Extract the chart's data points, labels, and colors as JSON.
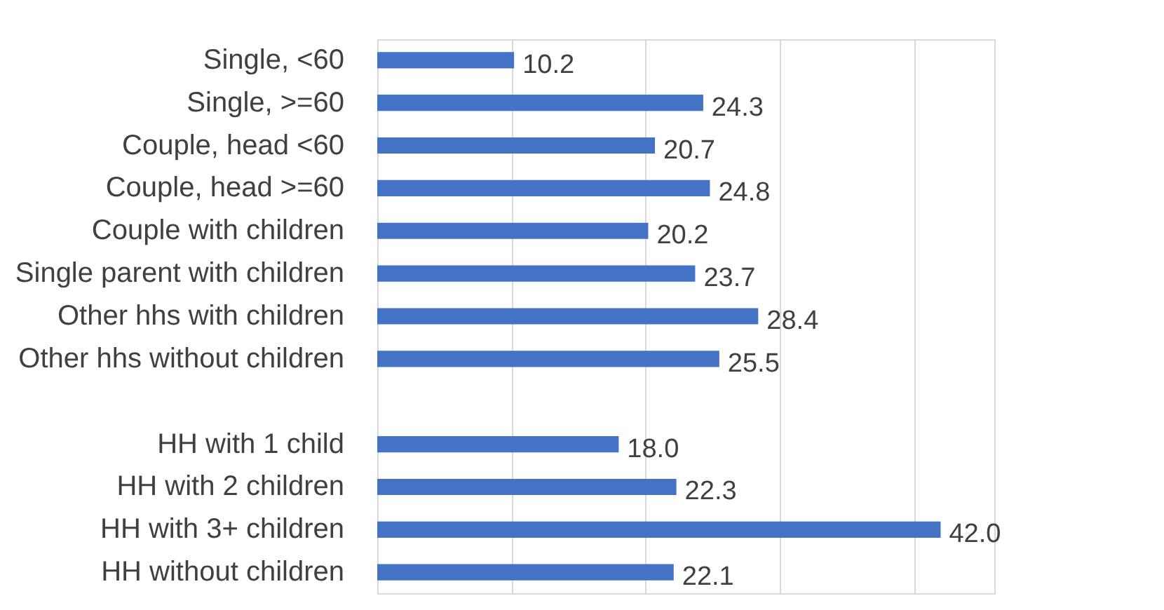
{
  "chart_data": {
    "type": "bar",
    "orientation": "horizontal",
    "categories": [
      "Single, <60",
      "Single, >=60",
      "Couple, head <60",
      "Couple, head >=60",
      "Couple with children",
      "Single parent with children",
      "Other hhs with children",
      "Other hhs without children",
      null,
      "HH with 1 child",
      "HH with 2 children",
      "HH with 3+ children",
      "HH without children"
    ],
    "values": [
      10.2,
      24.3,
      20.7,
      24.8,
      20.2,
      23.7,
      28.4,
      25.5,
      null,
      18.0,
      22.3,
      42.0,
      22.1
    ],
    "value_labels": [
      "10.2",
      "24.3",
      "20.7",
      "24.8",
      "20.2",
      "23.7",
      "28.4",
      "25.5",
      null,
      "18.0",
      "22.3",
      "42.0",
      "22.1"
    ],
    "color": "#4472c4",
    "xlim": [
      0,
      46
    ],
    "xticks": [
      {
        "value": 0,
        "label": null
      },
      {
        "value": 10,
        "label": null
      },
      {
        "value": 20,
        "label": null
      },
      {
        "value": 30,
        "label": null
      },
      {
        "value": 40,
        "label": null
      }
    ],
    "grid": "x",
    "tick_labels": "y"
  }
}
